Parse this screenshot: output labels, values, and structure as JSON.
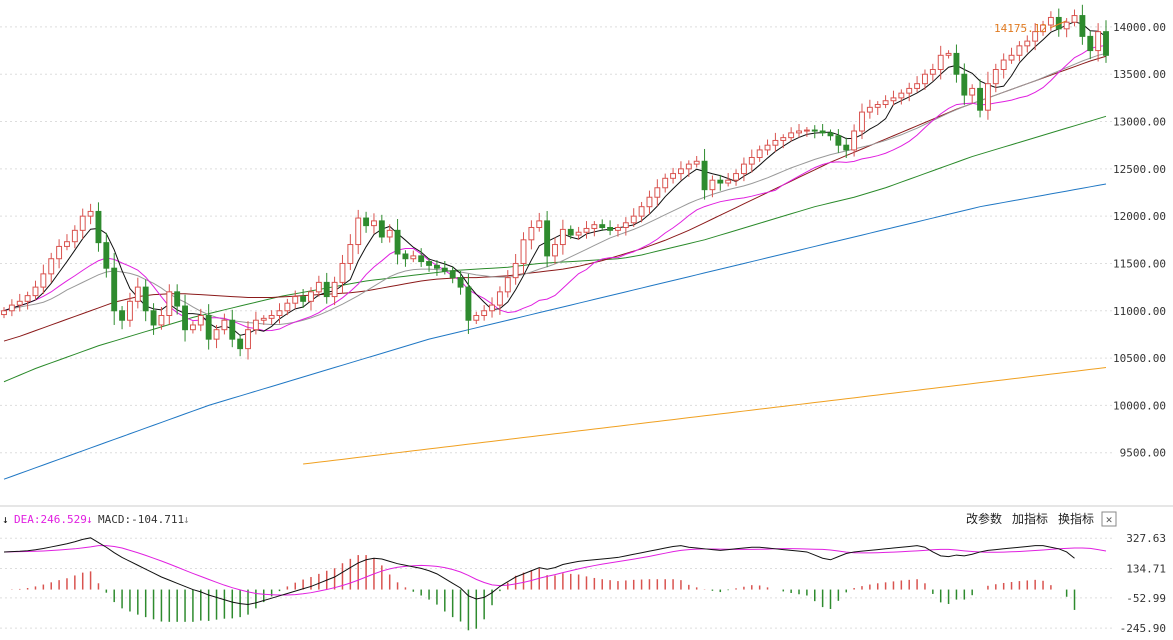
{
  "colors": {
    "up": "#d9534f",
    "down": "#2e8b2e",
    "ma5": "#111111",
    "ma10": "#e020e0",
    "ma20": "#999999",
    "ma30": "#8b1a1a",
    "ma60": "#2a8a2a",
    "ma120": "#1f77c4",
    "ma250": "#f0a020",
    "dif": "#111111",
    "dea": "#e020e0",
    "grid": "#dddddd"
  },
  "price_panel": {
    "ylim": [
      9000,
      14200
    ],
    "yticks": [
      "14000.00",
      "13500.00",
      "13000.00",
      "12500.00",
      "12000.00",
      "11500.00",
      "11000.00",
      "10500.00",
      "10000.00",
      "9500.00"
    ],
    "max_label": "14175.12"
  },
  "macd_panel": {
    "ylim": [
      -290,
      380
    ],
    "yticks": [
      "327.63",
      "134.71",
      "-52.99",
      "-245.90"
    ],
    "dea_label": "DEA:246.529",
    "macd_label": "MACD:-104.711",
    "buttons": [
      "改参数",
      "加指标",
      "换指标"
    ],
    "close_symbol": "✕"
  },
  "chart_data": {
    "type": "candlestick",
    "close": [
      11000,
      11060,
      11100,
      11160,
      11250,
      11390,
      11550,
      11680,
      11730,
      11850,
      12000,
      12050,
      11720,
      11450,
      11000,
      10900,
      11100,
      11250,
      11000,
      10850,
      10950,
      11200,
      11050,
      10800,
      10850,
      10950,
      10700,
      10800,
      10900,
      10700,
      10600,
      10800,
      10900,
      10920,
      10950,
      11000,
      11080,
      11150,
      11100,
      11200,
      11300,
      11150,
      11300,
      11500,
      11700,
      11980,
      11900,
      11950,
      11780,
      11850,
      11600,
      11550,
      11580,
      11520,
      11480,
      11450,
      11420,
      11350,
      11250,
      10900,
      10950,
      11000,
      11060,
      11200,
      11350,
      11500,
      11750,
      11880,
      11950,
      11580,
      11700,
      11860,
      11800,
      11830,
      11870,
      11910,
      11880,
      11850,
      11880,
      11930,
      12000,
      12100,
      12200,
      12300,
      12400,
      12450,
      12500,
      12550,
      12580,
      12280,
      12380,
      12350,
      12380,
      12450,
      12550,
      12620,
      12700,
      12750,
      12800,
      12830,
      12880,
      12900,
      12910,
      12900,
      12880,
      12850,
      12750,
      12700,
      12900,
      13100,
      13150,
      13180,
      13220,
      13250,
      13300,
      13350,
      13400,
      13500,
      13550,
      13700,
      13720,
      13500,
      13280,
      13350,
      13120,
      13400,
      13550,
      13650,
      13700,
      13800,
      13850,
      13950,
      14020,
      14100,
      13980,
      14050,
      14120,
      13900,
      13750,
      13950,
      13700
    ],
    "ma5": [
      11000,
      11030,
      11053,
      11080,
      11114,
      11192,
      11290,
      11406,
      11520,
      11640,
      11762,
      11862,
      11870,
      11814,
      11644,
      11424,
      11234,
      11140,
      11050,
      11020,
      11010,
      11070,
      11010,
      10970,
      10970,
      10960,
      10870,
      10820,
      10840,
      10810,
      10740,
      10760,
      10800,
      10784,
      10834,
      10914,
      10970,
      11020,
      11040,
      11106,
      11166,
      11196,
      11210,
      11270,
      11330,
      11526,
      11676,
      11806,
      11862,
      11892,
      11816,
      11746,
      11672,
      11620,
      11546,
      11520,
      11494,
      11464,
      11394,
      11274,
      11174,
      11090,
      11012,
      11022,
      11092,
      11222,
      11372,
      11536,
      11686,
      11732,
      11772,
      11814,
      11778,
      11758,
      11812,
      11834,
      11852,
      11862,
      11878,
      11890,
      11908,
      11952,
      12022,
      12106,
      12206,
      12290,
      12370,
      12440,
      12496,
      12472,
      12448,
      12428,
      12398,
      12366,
      12422,
      12470,
      12540,
      12614,
      12684,
      12740,
      12792,
      12832,
      12864,
      12878,
      12884,
      12888,
      12860,
      12820,
      12822,
      12862,
      12920,
      12966,
      13030,
      13180,
      13220,
      13260,
      13302,
      13354,
      13420,
      13500,
      13574,
      13594,
      13550,
      13510,
      13428,
      13390,
      13360,
      13374,
      13484,
      13620,
      13710,
      13790,
      13864,
      13944,
      13980,
      14020,
      14054,
      14030,
      13960,
      13954,
      13900
    ],
    "ma10": [
      11000,
      11030,
      11053,
      11080,
      11114,
      11153,
      11200,
      11260,
      11317,
      11370,
      11427,
      11481,
      11529,
      11557,
      11543,
      11505,
      11470,
      11429,
      11356,
      11256,
      11147,
      11044,
      10980,
      10931,
      10896,
      10901,
      10926,
      10926,
      10920,
      10893,
      10858,
      10823,
      10813,
      10790,
      10792,
      10807,
      10848,
      10882,
      10910,
      10940,
      10980,
      11036,
      11080,
      11137,
      11205,
      11281,
      11383,
      11463,
      11528,
      11599,
      11641,
      11658,
      11658,
      11601,
      11531,
      11479,
      11426,
      11369,
      11317,
      11224,
      11173,
      11130,
      11073,
      11007,
      10982,
      10991,
      11027,
      11059,
      11110,
      11123,
      11162,
      11238,
      11316,
      11392,
      11436,
      11509,
      11547,
      11562,
      11562,
      11597,
      11624,
      11664,
      11705,
      11757,
      11822,
      11876,
      11938,
      12007,
      12066,
      12101,
      12128,
      12153,
      12168,
      12182,
      12193,
      12211,
      12232,
      12252,
      12274,
      12332,
      12377,
      12424,
      12468,
      12513,
      12546,
      12569,
      12574,
      12569,
      12579,
      12605,
      12620,
      12639,
      12665,
      12701,
      12742,
      12791,
      12856,
      12936,
      13011,
      13081,
      13138,
      13179,
      13189,
      13194,
      13176,
      13181,
      13197,
      13211,
      13226,
      13251,
      13270,
      13309,
      13359,
      13434,
      13520,
      13598,
      13675,
      13718,
      13772,
      13793,
      13804
    ],
    "ma20": [
      11000,
      11020,
      11040,
      11055,
      11070,
      11090,
      11125,
      11170,
      11220,
      11260,
      11300,
      11340,
      11380,
      11410,
      11420,
      11410,
      11395,
      11370,
      11330,
      11290,
      11240,
      11180,
      11130,
      11090,
      11040,
      10995,
      10960,
      10930,
      10910,
      10895,
      10885,
      10875,
      10870,
      10860,
      10855,
      10855,
      10865,
      10880,
      10900,
      10925,
      10955,
      10990,
      11030,
      11070,
      11115,
      11160,
      11210,
      11260,
      11310,
      11360,
      11395,
      11420,
      11435,
      11440,
      11440,
      11435,
      11430,
      11420,
      11410,
      11395,
      11380,
      11370,
      11360,
      11355,
      11355,
      11365,
      11385,
      11410,
      11440,
      11465,
      11495,
      11530,
      11570,
      11610,
      11650,
      11690,
      11730,
      11770,
      11800,
      11830,
      11860,
      11895,
      11935,
      11975,
      12015,
      12055,
      12095,
      12135,
      12170,
      12200,
      12230,
      12255,
      12280,
      12300,
      12320,
      12345,
      12375,
      12405,
      12440,
      12475,
      12510,
      12540,
      12570,
      12600,
      12625,
      12650,
      12670,
      12690,
      12710,
      12730,
      12750,
      12775,
      12800,
      12830,
      12860,
      12895,
      12930,
      12970,
      13010,
      13050,
      13090,
      13125,
      13160,
      13190,
      13220,
      13250,
      13280,
      13310,
      13340,
      13370,
      13400,
      13430,
      13465,
      13500,
      13535,
      13570,
      13605,
      13640,
      13670,
      13700,
      13720
    ],
    "ma30": [
      10680,
      10705,
      10730,
      10760,
      10790,
      10820,
      10850,
      10880,
      10910,
      10940,
      10970,
      11000,
      11030,
      11060,
      11090,
      11110,
      11130,
      11150,
      11160,
      11170,
      11175,
      11180,
      11180,
      11180,
      11175,
      11170,
      11165,
      11160,
      11155,
      11150,
      11145,
      11140,
      11140,
      11140,
      11140,
      11145,
      11150,
      11155,
      11160,
      11165,
      11170,
      11175,
      11180,
      11185,
      11190,
      11200,
      11210,
      11225,
      11240,
      11255,
      11270,
      11285,
      11300,
      11315,
      11325,
      11335,
      11340,
      11345,
      11350,
      11350,
      11350,
      11355,
      11360,
      11365,
      11370,
      11380,
      11390,
      11400,
      11410,
      11420,
      11430,
      11440,
      11455,
      11470,
      11490,
      11510,
      11530,
      11555,
      11580,
      11605,
      11630,
      11655,
      11685,
      11715,
      11745,
      11780,
      11815,
      11850,
      11890,
      11930,
      11970,
      12010,
      12050,
      12090,
      12130,
      12170,
      12210,
      12250,
      12290,
      12330,
      12370,
      12410,
      12450,
      12490,
      12530,
      12570,
      12605,
      12640,
      12675,
      12710,
      12745,
      12780,
      12815,
      12850,
      12885,
      12920,
      12955,
      12990,
      13025,
      13060,
      13095,
      13130,
      13160,
      13190,
      13220,
      13250,
      13280,
      13310,
      13340,
      13370,
      13400,
      13430,
      13460,
      13490,
      13520,
      13550,
      13580,
      13610,
      13640,
      13665,
      13690
    ],
    "ma60": [
      10250,
      10285,
      10320,
      10355,
      10390,
      10420,
      10450,
      10480,
      10510,
      10540,
      10570,
      10600,
      10630,
      10655,
      10680,
      10705,
      10730,
      10755,
      10780,
      10805,
      10830,
      10855,
      10880,
      10905,
      10930,
      10950,
      10970,
      10990,
      11010,
      11030,
      11050,
      11070,
      11090,
      11110,
      11130,
      11150,
      11165,
      11180,
      11195,
      11210,
      11225,
      11240,
      11255,
      11270,
      11285,
      11300,
      11315,
      11325,
      11335,
      11345,
      11355,
      11365,
      11375,
      11385,
      11395,
      11405,
      11415,
      11425,
      11430,
      11435,
      11440,
      11445,
      11450,
      11455,
      11460,
      11470,
      11480,
      11490,
      11500,
      11505,
      11510,
      11515,
      11520,
      11525,
      11530,
      11535,
      11540,
      11545,
      11550,
      11560,
      11575,
      11590,
      11610,
      11630,
      11650,
      11670,
      11690,
      11710,
      11730,
      11750,
      11775,
      11800,
      11825,
      11850,
      11875,
      11900,
      11925,
      11950,
      11975,
      12000,
      12025,
      12050,
      12075,
      12100,
      12120,
      12140,
      12160,
      12180,
      12200,
      12225,
      12250,
      12275,
      12300,
      12330,
      12360,
      12390,
      12420,
      12450,
      12480,
      12510,
      12540,
      12570,
      12600,
      12630,
      12655,
      12680,
      12705,
      12730,
      12755,
      12780,
      12805,
      12830,
      12855,
      12880,
      12905,
      12930,
      12955,
      12980,
      13005,
      13030,
      13055
    ],
    "ma120": [
      9220,
      9250,
      9280,
      9310,
      9340,
      9370,
      9400,
      9430,
      9460,
      9490,
      9520,
      9550,
      9580,
      9610,
      9640,
      9670,
      9700,
      9730,
      9760,
      9790,
      9820,
      9850,
      9880,
      9910,
      9940,
      9970,
      10000,
      10025,
      10050,
      10075,
      10100,
      10125,
      10150,
      10175,
      10200,
      10225,
      10250,
      10275,
      10300,
      10325,
      10350,
      10375,
      10400,
      10425,
      10450,
      10475,
      10500,
      10525,
      10550,
      10575,
      10600,
      10625,
      10650,
      10675,
      10700,
      10720,
      10740,
      10760,
      10780,
      10800,
      10820,
      10840,
      10860,
      10880,
      10900,
      10920,
      10940,
      10960,
      10980,
      11000,
      11020,
      11040,
      11060,
      11080,
      11100,
      11120,
      11140,
      11160,
      11180,
      11200,
      11220,
      11240,
      11260,
      11280,
      11300,
      11320,
      11340,
      11360,
      11380,
      11400,
      11420,
      11440,
      11460,
      11480,
      11500,
      11520,
      11540,
      11560,
      11580,
      11600,
      11620,
      11640,
      11660,
      11680,
      11700,
      11720,
      11740,
      11760,
      11780,
      11800,
      11820,
      11840,
      11860,
      11880,
      11900,
      11920,
      11940,
      11960,
      11980,
      12000,
      12020,
      12040,
      12060,
      12080,
      12100,
      12115,
      12130,
      12145,
      12160,
      12175,
      12190,
      12205,
      12220,
      12235,
      12250,
      12265,
      12280,
      12295,
      12310,
      12325,
      12340
    ],
    "ma250": [
      null,
      null,
      null,
      null,
      null,
      null,
      null,
      null,
      null,
      null,
      null,
      null,
      null,
      null,
      null,
      null,
      null,
      null,
      null,
      null,
      null,
      null,
      null,
      null,
      null,
      null,
      null,
      null,
      null,
      null,
      null,
      null,
      null,
      null,
      null,
      null,
      null,
      null,
      9380,
      9390,
      9400,
      9410,
      9420,
      9430,
      9440,
      9450,
      9460,
      9470,
      9480,
      9490,
      9500,
      9510,
      9520,
      9530,
      9540,
      9550,
      9560,
      9570,
      9580,
      9590,
      9600,
      9610,
      9620,
      9630,
      9640,
      9650,
      9660,
      9670,
      9680,
      9690,
      9700,
      9710,
      9720,
      9730,
      9740,
      9750,
      9760,
      9770,
      9780,
      9790,
      9800,
      9810,
      9820,
      9830,
      9840,
      9850,
      9860,
      9870,
      9880,
      9890,
      9900,
      9910,
      9920,
      9930,
      9940,
      9950,
      9960,
      9970,
      9980,
      9990,
      10000,
      10010,
      10020,
      10030,
      10040,
      10050,
      10060,
      10070,
      10080,
      10090,
      10100,
      10110,
      10120,
      10130,
      10140,
      10150,
      10160,
      10170,
      10180,
      10190,
      10200,
      10210,
      10220,
      10230,
      10240,
      10250,
      10260,
      10270,
      10280,
      10290,
      10300,
      10310,
      10320,
      10330,
      10340,
      10350,
      10360,
      10370,
      10380,
      10390,
      10400
    ],
    "dif": [
      240,
      242,
      244,
      248,
      254,
      262,
      272,
      282,
      292,
      305,
      320,
      330,
      300,
      270,
      235,
      205,
      180,
      155,
      130,
      105,
      80,
      60,
      40,
      20,
      0,
      -15,
      -35,
      -50,
      -65,
      -80,
      -90,
      -95,
      -85,
      -70,
      -55,
      -40,
      -25,
      -10,
      5,
      20,
      40,
      60,
      80,
      110,
      140,
      170,
      190,
      200,
      195,
      180,
      165,
      155,
      145,
      135,
      120,
      100,
      70,
      40,
      10,
      -40,
      -60,
      -50,
      -20,
      20,
      50,
      80,
      100,
      120,
      140,
      130,
      140,
      160,
      170,
      180,
      185,
      190,
      195,
      200,
      205,
      215,
      225,
      235,
      245,
      255,
      265,
      275,
      280,
      270,
      265,
      260,
      255,
      250,
      255,
      260,
      265,
      270,
      270,
      265,
      260,
      255,
      250,
      245,
      240,
      220,
      200,
      190,
      210,
      230,
      240,
      245,
      250,
      255,
      260,
      265,
      270,
      275,
      280,
      270,
      240,
      215,
      210,
      220,
      215,
      225,
      240,
      250,
      255,
      260,
      265,
      270,
      275,
      280,
      280,
      270,
      260,
      240,
      200
    ],
    "dea": [
      240,
      241,
      242,
      243,
      244,
      246,
      249,
      252,
      256,
      260,
      266,
      272,
      280,
      280,
      275,
      265,
      250,
      235,
      218,
      200,
      182,
      163,
      143,
      123,
      103,
      84,
      65,
      46,
      28,
      12,
      -2,
      -15,
      -25,
      -30,
      -33,
      -35,
      -35,
      -32,
      -27,
      -20,
      -10,
      0,
      12,
      26,
      42,
      60,
      80,
      100,
      118,
      132,
      142,
      148,
      152,
      154,
      152,
      148,
      140,
      128,
      112,
      90,
      65,
      45,
      30,
      25,
      28,
      36,
      46,
      58,
      72,
      84,
      95,
      108,
      120,
      132,
      143,
      153,
      162,
      170,
      178,
      186,
      194,
      203,
      212,
      222,
      232,
      242,
      250,
      255,
      258,
      259,
      259,
      258,
      257,
      256,
      256,
      256,
      257,
      258,
      260,
      261,
      261,
      260,
      259,
      257,
      256,
      252,
      246,
      239,
      235,
      234,
      234,
      235,
      237,
      239,
      241,
      244,
      247,
      250,
      254,
      256,
      256,
      252,
      247,
      243,
      240,
      238,
      238,
      239,
      241,
      243,
      246,
      249,
      252,
      256,
      260,
      263,
      265,
      265,
      263,
      255,
      246
    ]
  }
}
